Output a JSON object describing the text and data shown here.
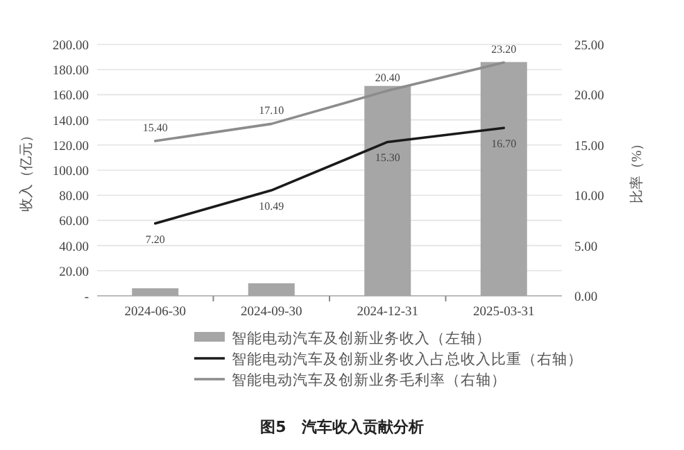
{
  "chart_data": {
    "type": "bar",
    "title": "图5　汽车收入贡献分析",
    "ylabel": "收入（亿元）",
    "y2label": "比率（%）",
    "categories": [
      "2024-06-30",
      "2024-09-30",
      "2024-12-31",
      "2025-03-31"
    ],
    "series": [
      {
        "name": "智能电动汽车及创新业务收入（左轴）",
        "color": "#a6a6a6",
        "values": [
          6,
          10,
          167,
          186
        ]
      },
      {
        "name": "智能电动汽车及创新业务收入占总收入比重（右轴）",
        "type": "line",
        "axis": "y2",
        "color": "#1a1a1a",
        "values": [
          7.2,
          10.49,
          15.3,
          16.7
        ],
        "value_labels": [
          "7.20",
          "10.49",
          "15.30",
          "16.70"
        ]
      },
      {
        "name": "智能电动汽车及创新业务毛利率（右轴）",
        "type": "line",
        "axis": "y2",
        "color": "#8c8c8c",
        "values": [
          15.4,
          17.1,
          20.4,
          23.2
        ],
        "value_labels": [
          "15.40",
          "17.10",
          "20.40",
          "23.20"
        ]
      }
    ],
    "ylim": [
      0,
      200
    ],
    "yticks": [
      {
        "value": 0,
        "label": "-"
      },
      {
        "value": 20,
        "label": "20.00"
      },
      {
        "value": 40,
        "label": "40.00"
      },
      {
        "value": 60,
        "label": "60.00"
      },
      {
        "value": 80,
        "label": "80.00"
      },
      {
        "value": 100,
        "label": "100.00"
      },
      {
        "value": 120,
        "label": "120.00"
      },
      {
        "value": 140,
        "label": "140.00"
      },
      {
        "value": 160,
        "label": "160.00"
      },
      {
        "value": 180,
        "label": "180.00"
      },
      {
        "value": 200,
        "label": "200.00"
      }
    ],
    "y2lim": [
      0,
      25
    ],
    "y2ticks": [
      {
        "value": 0,
        "label": "0.00"
      },
      {
        "value": 5,
        "label": "5.00"
      },
      {
        "value": 10,
        "label": "10.00"
      },
      {
        "value": 15,
        "label": "15.00"
      },
      {
        "value": 20,
        "label": "20.00"
      },
      {
        "value": 25,
        "label": "25.00"
      }
    ],
    "grid": "y",
    "legend": "bottom"
  }
}
